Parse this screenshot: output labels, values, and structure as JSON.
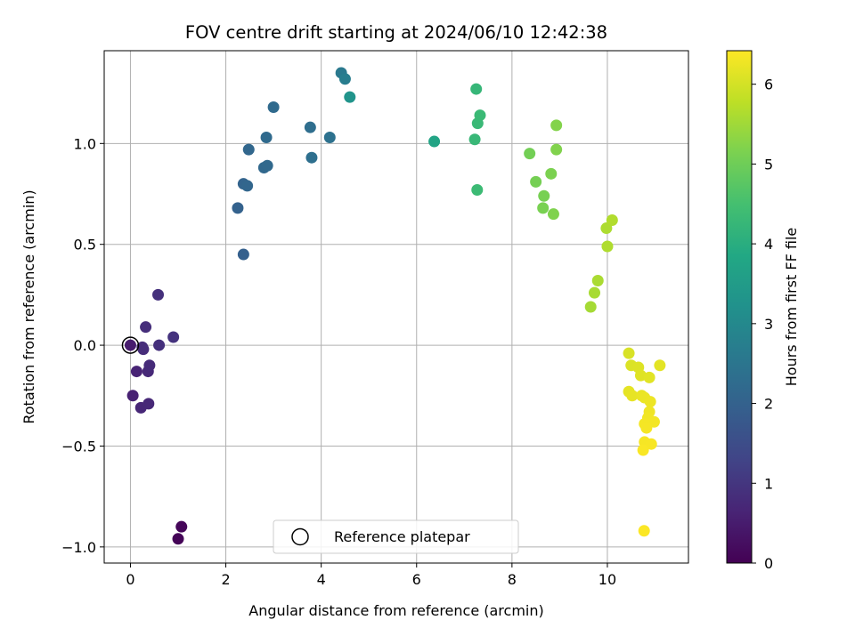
{
  "chart_data": {
    "type": "scatter",
    "title": "FOV centre drift starting at 2024/06/10 12:42:38",
    "xlabel": "Angular distance from reference (arcmin)",
    "ylabel": "Rotation from reference (arcmin)",
    "xlim": [
      -0.55,
      11.7
    ],
    "ylim": [
      -1.08,
      1.46
    ],
    "xticks": [
      0,
      2,
      4,
      6,
      8,
      10
    ],
    "yticks": [
      -1.0,
      -0.5,
      0.0,
      0.5,
      1.0
    ],
    "xtick_labels": [
      "0",
      "2",
      "4",
      "6",
      "8",
      "10"
    ],
    "ytick_labels": [
      "−1.0",
      "−0.5",
      "0.0",
      "0.5",
      "1.0"
    ],
    "grid": true,
    "legend": {
      "placement": "lower center",
      "entries": [
        "Reference platepar"
      ]
    },
    "reference_point": {
      "x": 0.0,
      "y": 0.0
    },
    "colorbar": {
      "label": "Hours from first FF file",
      "colormap": "viridis",
      "range": [
        0,
        6.42
      ],
      "ticks": [
        0,
        1,
        2,
        3,
        4,
        5,
        6
      ],
      "tick_labels": [
        "0",
        "1",
        "2",
        "3",
        "4",
        "5",
        "6"
      ]
    },
    "points": [
      {
        "x": 1.0,
        "y": -0.96,
        "c": 0.05
      },
      {
        "x": 1.07,
        "y": -0.9,
        "c": 0.1
      },
      {
        "x": 0.0,
        "y": 0.0,
        "c": 0.5
      },
      {
        "x": 0.05,
        "y": -0.25,
        "c": 0.6
      },
      {
        "x": 0.13,
        "y": -0.13,
        "c": 0.65
      },
      {
        "x": 0.22,
        "y": -0.31,
        "c": 0.7
      },
      {
        "x": 0.38,
        "y": -0.29,
        "c": 0.72
      },
      {
        "x": 0.37,
        "y": -0.13,
        "c": 0.75
      },
      {
        "x": 0.4,
        "y": -0.1,
        "c": 0.78
      },
      {
        "x": 0.27,
        "y": -0.02,
        "c": 0.8
      },
      {
        "x": 0.25,
        "y": -0.01,
        "c": 0.82
      },
      {
        "x": 0.32,
        "y": 0.09,
        "c": 0.85
      },
      {
        "x": 0.6,
        "y": 0.0,
        "c": 0.88
      },
      {
        "x": 0.58,
        "y": 0.25,
        "c": 0.9
      },
      {
        "x": 0.9,
        "y": 0.04,
        "c": 0.95
      },
      {
        "x": 2.37,
        "y": 0.45,
        "c": 1.95
      },
      {
        "x": 2.25,
        "y": 0.68,
        "c": 2.0
      },
      {
        "x": 2.37,
        "y": 0.8,
        "c": 2.05
      },
      {
        "x": 2.45,
        "y": 0.79,
        "c": 2.1
      },
      {
        "x": 2.48,
        "y": 0.97,
        "c": 2.12
      },
      {
        "x": 2.8,
        "y": 0.88,
        "c": 2.15
      },
      {
        "x": 2.87,
        "y": 0.89,
        "c": 2.18
      },
      {
        "x": 2.85,
        "y": 1.03,
        "c": 2.2
      },
      {
        "x": 3.0,
        "y": 1.18,
        "c": 2.22
      },
      {
        "x": 3.77,
        "y": 1.08,
        "c": 2.3
      },
      {
        "x": 3.8,
        "y": 0.93,
        "c": 2.33
      },
      {
        "x": 4.18,
        "y": 1.03,
        "c": 2.4
      },
      {
        "x": 4.42,
        "y": 1.35,
        "c": 2.6
      },
      {
        "x": 4.5,
        "y": 1.32,
        "c": 2.7
      },
      {
        "x": 4.6,
        "y": 1.23,
        "c": 3.3
      },
      {
        "x": 6.37,
        "y": 1.01,
        "c": 3.75
      },
      {
        "x": 7.25,
        "y": 1.27,
        "c": 4.25
      },
      {
        "x": 7.22,
        "y": 1.02,
        "c": 4.28
      },
      {
        "x": 7.28,
        "y": 1.1,
        "c": 4.3
      },
      {
        "x": 7.33,
        "y": 1.14,
        "c": 4.32
      },
      {
        "x": 7.27,
        "y": 0.77,
        "c": 4.35
      },
      {
        "x": 8.37,
        "y": 0.95,
        "c": 5.05
      },
      {
        "x": 8.5,
        "y": 0.81,
        "c": 5.08
      },
      {
        "x": 8.67,
        "y": 0.74,
        "c": 5.1
      },
      {
        "x": 8.65,
        "y": 0.68,
        "c": 5.12
      },
      {
        "x": 8.82,
        "y": 0.85,
        "c": 5.15
      },
      {
        "x": 8.87,
        "y": 0.65,
        "c": 5.18
      },
      {
        "x": 8.93,
        "y": 0.97,
        "c": 5.2
      },
      {
        "x": 8.93,
        "y": 1.09,
        "c": 5.22
      },
      {
        "x": 9.65,
        "y": 0.19,
        "c": 5.55
      },
      {
        "x": 9.73,
        "y": 0.26,
        "c": 5.58
      },
      {
        "x": 9.8,
        "y": 0.32,
        "c": 5.6
      },
      {
        "x": 9.98,
        "y": 0.58,
        "c": 5.62
      },
      {
        "x": 10.0,
        "y": 0.49,
        "c": 5.64
      },
      {
        "x": 10.1,
        "y": 0.62,
        "c": 5.66
      },
      {
        "x": 10.45,
        "y": -0.04,
        "c": 6.05
      },
      {
        "x": 10.5,
        "y": -0.1,
        "c": 6.08
      },
      {
        "x": 10.65,
        "y": -0.11,
        "c": 6.1
      },
      {
        "x": 10.7,
        "y": -0.15,
        "c": 6.12
      },
      {
        "x": 10.88,
        "y": -0.16,
        "c": 6.14
      },
      {
        "x": 11.1,
        "y": -0.1,
        "c": 6.16
      },
      {
        "x": 10.45,
        "y": -0.23,
        "c": 6.18
      },
      {
        "x": 10.52,
        "y": -0.25,
        "c": 6.2
      },
      {
        "x": 10.72,
        "y": -0.25,
        "c": 6.22
      },
      {
        "x": 10.78,
        "y": -0.26,
        "c": 6.24
      },
      {
        "x": 10.9,
        "y": -0.28,
        "c": 6.26
      },
      {
        "x": 10.88,
        "y": -0.33,
        "c": 6.28
      },
      {
        "x": 10.85,
        "y": -0.36,
        "c": 6.3
      },
      {
        "x": 10.98,
        "y": -0.38,
        "c": 6.32
      },
      {
        "x": 10.78,
        "y": -0.39,
        "c": 6.33
      },
      {
        "x": 10.82,
        "y": -0.41,
        "c": 6.34
      },
      {
        "x": 10.78,
        "y": -0.48,
        "c": 6.35
      },
      {
        "x": 10.92,
        "y": -0.49,
        "c": 6.36
      },
      {
        "x": 10.75,
        "y": -0.52,
        "c": 6.38
      },
      {
        "x": 10.77,
        "y": -0.92,
        "c": 6.4
      }
    ]
  }
}
